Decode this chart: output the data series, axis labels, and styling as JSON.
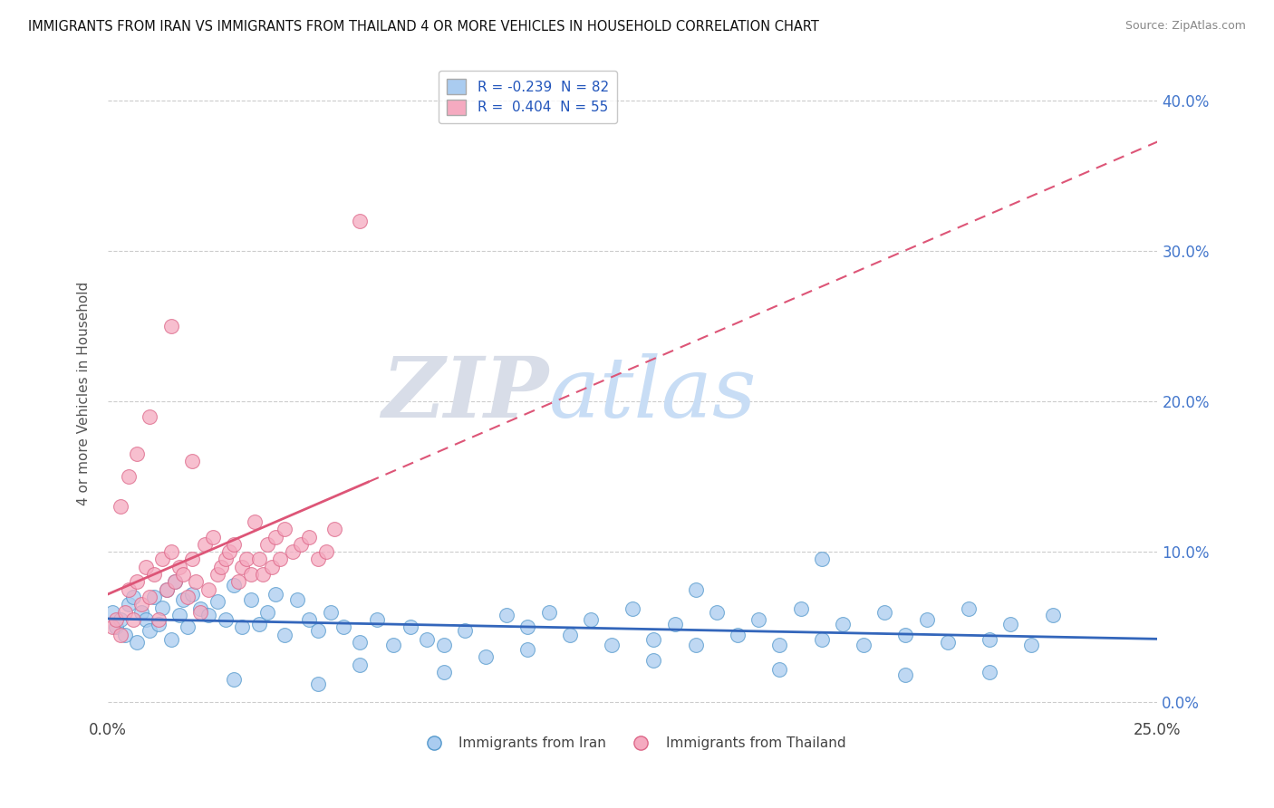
{
  "title": "IMMIGRANTS FROM IRAN VS IMMIGRANTS FROM THAILAND 4 OR MORE VEHICLES IN HOUSEHOLD CORRELATION CHART",
  "source": "Source: ZipAtlas.com",
  "ylabel": "4 or more Vehicles in Household",
  "legend_bottom_iran": "Immigrants from Iran",
  "legend_bottom_thailand": "Immigrants from Thailand",
  "xlim": [
    0.0,
    0.25
  ],
  "ylim": [
    -0.01,
    0.42
  ],
  "iran_color": "#aaccf0",
  "iran_color_dark": "#5599cc",
  "thailand_color": "#f5aac0",
  "thailand_color_dark": "#dd6688",
  "iran_line_color": "#3366bb",
  "thailand_line_color": "#dd5577",
  "iran_R": -0.239,
  "iran_N": 82,
  "thailand_R": 0.404,
  "thailand_N": 55,
  "watermark_ZIP": "ZIP",
  "watermark_atlas": "atlas",
  "iran_scatter_x": [
    0.001,
    0.002,
    0.003,
    0.004,
    0.005,
    0.006,
    0.007,
    0.008,
    0.009,
    0.01,
    0.011,
    0.012,
    0.013,
    0.014,
    0.015,
    0.016,
    0.017,
    0.018,
    0.019,
    0.02,
    0.022,
    0.024,
    0.026,
    0.028,
    0.03,
    0.032,
    0.034,
    0.036,
    0.038,
    0.04,
    0.042,
    0.045,
    0.048,
    0.05,
    0.053,
    0.056,
    0.06,
    0.064,
    0.068,
    0.072,
    0.076,
    0.08,
    0.085,
    0.09,
    0.095,
    0.1,
    0.105,
    0.11,
    0.115,
    0.12,
    0.125,
    0.13,
    0.135,
    0.14,
    0.145,
    0.15,
    0.155,
    0.16,
    0.165,
    0.17,
    0.175,
    0.18,
    0.185,
    0.19,
    0.195,
    0.2,
    0.205,
    0.21,
    0.215,
    0.22,
    0.225,
    0.06,
    0.08,
    0.1,
    0.13,
    0.16,
    0.19,
    0.21,
    0.17,
    0.14,
    0.03,
    0.05
  ],
  "iran_scatter_y": [
    0.06,
    0.05,
    0.055,
    0.045,
    0.065,
    0.07,
    0.04,
    0.06,
    0.055,
    0.048,
    0.07,
    0.052,
    0.063,
    0.075,
    0.042,
    0.08,
    0.058,
    0.068,
    0.05,
    0.072,
    0.062,
    0.058,
    0.067,
    0.055,
    0.078,
    0.05,
    0.068,
    0.052,
    0.06,
    0.072,
    0.045,
    0.068,
    0.055,
    0.048,
    0.06,
    0.05,
    0.04,
    0.055,
    0.038,
    0.05,
    0.042,
    0.038,
    0.048,
    0.03,
    0.058,
    0.05,
    0.06,
    0.045,
    0.055,
    0.038,
    0.062,
    0.042,
    0.052,
    0.038,
    0.06,
    0.045,
    0.055,
    0.038,
    0.062,
    0.042,
    0.052,
    0.038,
    0.06,
    0.045,
    0.055,
    0.04,
    0.062,
    0.042,
    0.052,
    0.038,
    0.058,
    0.025,
    0.02,
    0.035,
    0.028,
    0.022,
    0.018,
    0.02,
    0.095,
    0.075,
    0.015,
    0.012
  ],
  "thailand_scatter_x": [
    0.001,
    0.002,
    0.003,
    0.004,
    0.005,
    0.006,
    0.007,
    0.008,
    0.009,
    0.01,
    0.011,
    0.012,
    0.013,
    0.014,
    0.015,
    0.016,
    0.017,
    0.018,
    0.019,
    0.02,
    0.021,
    0.022,
    0.023,
    0.024,
    0.025,
    0.026,
    0.027,
    0.028,
    0.029,
    0.03,
    0.031,
    0.032,
    0.033,
    0.034,
    0.035,
    0.036,
    0.037,
    0.038,
    0.039,
    0.04,
    0.041,
    0.042,
    0.044,
    0.046,
    0.048,
    0.05,
    0.052,
    0.054,
    0.003,
    0.005,
    0.007,
    0.01,
    0.015,
    0.02,
    0.06
  ],
  "thailand_scatter_y": [
    0.05,
    0.055,
    0.045,
    0.06,
    0.075,
    0.055,
    0.08,
    0.065,
    0.09,
    0.07,
    0.085,
    0.055,
    0.095,
    0.075,
    0.1,
    0.08,
    0.09,
    0.085,
    0.07,
    0.095,
    0.08,
    0.06,
    0.105,
    0.075,
    0.11,
    0.085,
    0.09,
    0.095,
    0.1,
    0.105,
    0.08,
    0.09,
    0.095,
    0.085,
    0.12,
    0.095,
    0.085,
    0.105,
    0.09,
    0.11,
    0.095,
    0.115,
    0.1,
    0.105,
    0.11,
    0.095,
    0.1,
    0.115,
    0.13,
    0.15,
    0.165,
    0.19,
    0.25,
    0.16,
    0.32
  ]
}
